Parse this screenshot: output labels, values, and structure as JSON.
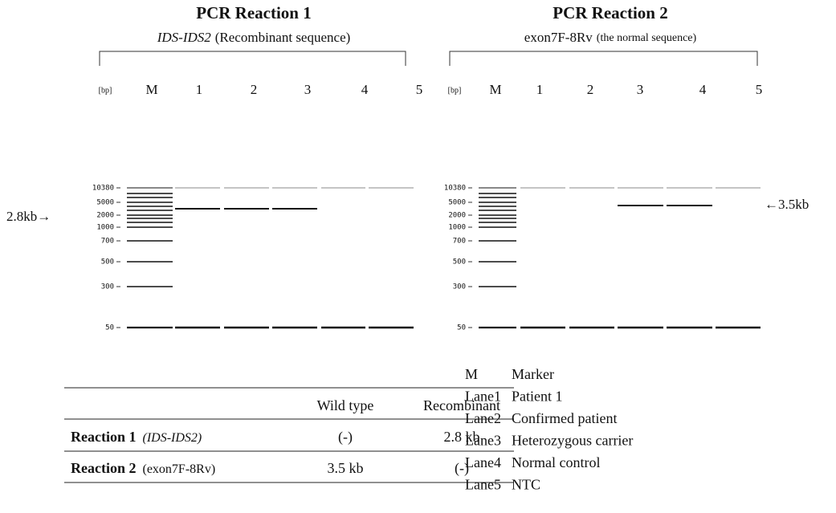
{
  "panels": [
    {
      "title": "PCR Reaction 1",
      "primer": "IDS-IDS2",
      "note": "(Recombinant sequence)",
      "lanes": [
        "[bp]",
        "M",
        "1",
        "2",
        "3",
        "4",
        "5"
      ],
      "markers": [
        "10380",
        "5000",
        "2000",
        "1000",
        "700",
        "500",
        "300",
        "50"
      ],
      "annotation": "2.8kb→"
    },
    {
      "title": "PCR Reaction 2",
      "primer": "exon7F-8Rv",
      "note": "(the normal sequence)",
      "lanes": [
        "[bp]",
        "M",
        "1",
        "2",
        "3",
        "4",
        "5"
      ],
      "markers": [
        "10380",
        "5000",
        "2000",
        "1000",
        "700",
        "500",
        "300",
        "50"
      ],
      "annotation": "←3.5kb"
    }
  ],
  "table": {
    "header": [
      "Wild type",
      "Recombinant"
    ],
    "rows": [
      {
        "name": "Reaction 1",
        "primer": "(IDS-IDS2)",
        "cells": [
          "(-)",
          "2.8 kb"
        ]
      },
      {
        "name": "Reaction 2",
        "primer": "(exon7F-8Rv)",
        "cells": [
          "3.5 kb",
          "(-)"
        ]
      }
    ]
  },
  "legend": [
    [
      "M",
      "Marker"
    ],
    [
      "Lane1",
      "Patient 1"
    ],
    [
      "Lane2",
      "Confirmed patient"
    ],
    [
      "Lane3",
      "Heterozygous carrier"
    ],
    [
      "Lane4",
      "Normal control"
    ],
    [
      "Lane5",
      "NTC"
    ]
  ]
}
